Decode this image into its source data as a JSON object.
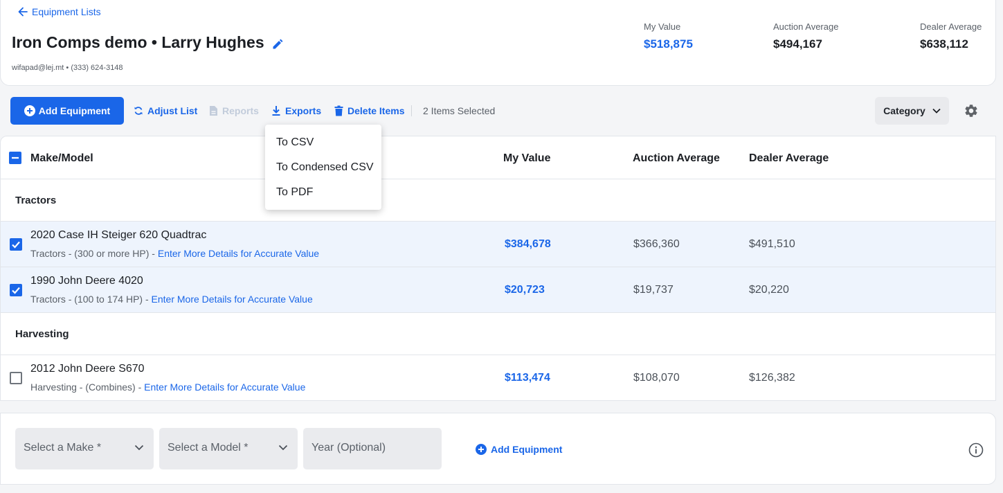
{
  "header": {
    "back_label": "Equipment Lists",
    "title": "Iron Comps demo • Larry Hughes",
    "contact": "wifapad@lej.mt • (333) 624-3148",
    "summary": {
      "my_value_label": "My Value",
      "my_value": "$518,875",
      "auction_label": "Auction Average",
      "auction_value": "$494,167",
      "dealer_label": "Dealer Average",
      "dealer_value": "$638,112"
    }
  },
  "toolbar": {
    "add_equipment": "Add Equipment",
    "adjust_list": "Adjust List",
    "reports": "Reports",
    "exports": "Exports",
    "delete_items": "Delete Items",
    "selected_count": "2 Items Selected",
    "category": "Category"
  },
  "exports_menu": {
    "options": [
      "To CSV",
      "To Condensed CSV",
      "To PDF"
    ]
  },
  "table": {
    "columns": {
      "make_model": "Make/Model",
      "my_value": "My Value",
      "auction_average": "Auction Average",
      "dealer_average": "Dealer Average"
    },
    "groups": [
      {
        "name": "Tractors",
        "items": [
          {
            "title": "2020 Case IH Steiger 620 Quadtrac",
            "category": "Tractors - (300 or more HP)",
            "sep": " - ",
            "link": "Enter More Details for Accurate Value",
            "my_value": "$384,678",
            "auction": "$366,360",
            "dealer": "$491,510",
            "selected": true
          },
          {
            "title": "1990 John Deere 4020",
            "category": "Tractors - (100 to 174 HP)",
            "sep": " - ",
            "link": "Enter More Details for Accurate Value",
            "my_value": "$20,723",
            "auction": "$19,737",
            "dealer": "$20,220",
            "selected": true
          }
        ]
      },
      {
        "name": "Harvesting",
        "items": [
          {
            "title": "2012 John Deere S670",
            "category": "Harvesting - (Combines)",
            "sep": " - ",
            "link": "Enter More Details for Accurate Value",
            "my_value": "$113,474",
            "auction": "$108,070",
            "dealer": "$126,382",
            "selected": false
          }
        ]
      }
    ]
  },
  "add_bar": {
    "make_placeholder": "Select a Make *",
    "model_placeholder": "Select a Model *",
    "year_placeholder": "Year (Optional)",
    "add_label": "Add Equipment"
  },
  "colors": {
    "accent": "#1a66e8",
    "selected_row": "#eef4fd",
    "page_bg": "#f4f5f7"
  }
}
